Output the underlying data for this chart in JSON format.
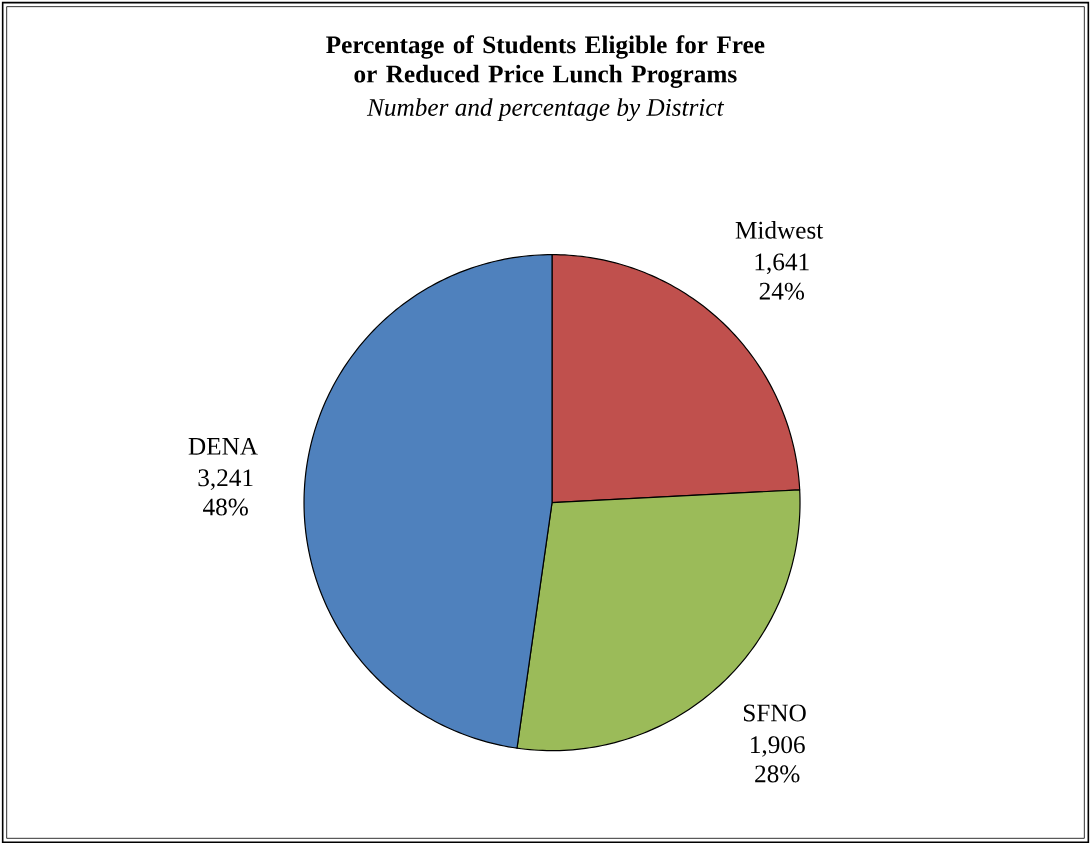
{
  "chart_data": {
    "type": "pie",
    "title": "Percentage of Students Eligible for Free or Reduced Price Lunch Programs",
    "subtitle": "Number and percentage by District",
    "categories": [
      "Midwest",
      "SFNO",
      "DENA"
    ],
    "values": [
      1641,
      1906,
      3241
    ],
    "value_labels": [
      "1,641 24%",
      "1,906 28%",
      "3,241 48%"
    ],
    "colors": [
      "#c0504d",
      "#9bbb59",
      "#4f81bd"
    ]
  }
}
